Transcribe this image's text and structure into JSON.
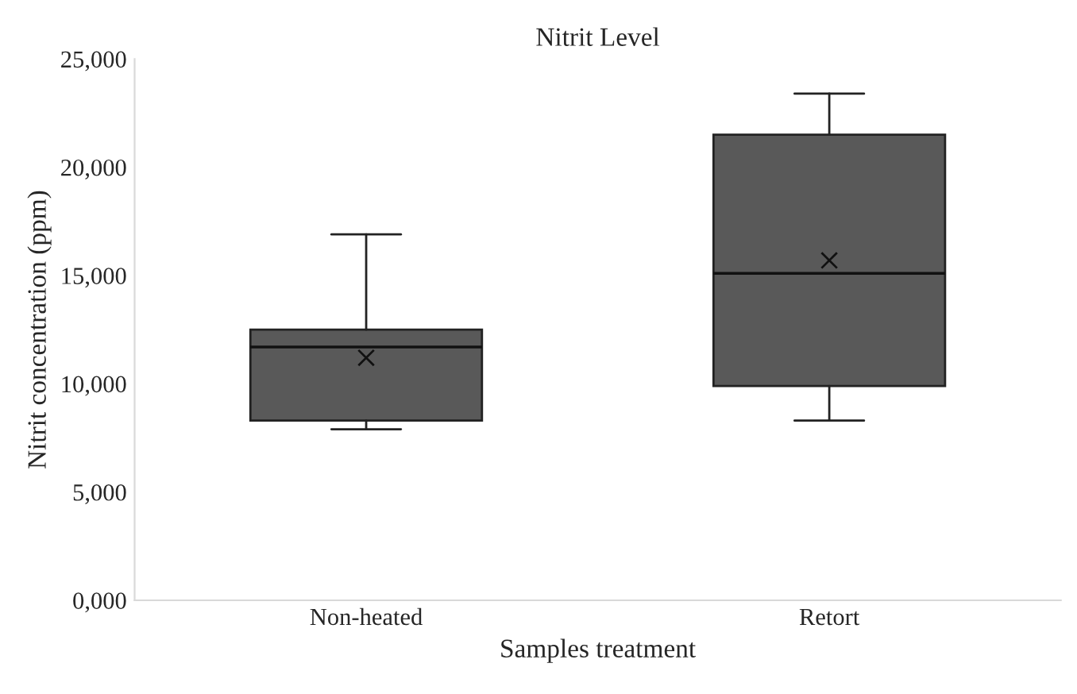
{
  "chart_data": {
    "type": "box",
    "title": "Nitrit Level",
    "xlabel": "Samples treatment",
    "ylabel": "Nitrit concentration (ppm)",
    "categories": [
      "Non-heated",
      "Retort"
    ],
    "boxes": [
      {
        "low": 7900,
        "q1": 8300,
        "median": 11700,
        "q3": 12500,
        "high": 16900,
        "mean": 11200
      },
      {
        "low": 8300,
        "q1": 9900,
        "median": 15100,
        "q3": 21500,
        "high": 23400,
        "mean": 15700
      }
    ],
    "color": "#595959",
    "ylim": [
      0,
      25000
    ],
    "yticks": [
      {
        "value": 0,
        "label": "0,000"
      },
      {
        "value": 5000,
        "label": "5,000"
      },
      {
        "value": 10000,
        "label": "10,000"
      },
      {
        "value": 15000,
        "label": "15,000"
      },
      {
        "value": 20000,
        "label": "20,000"
      },
      {
        "value": 25000,
        "label": "25,000"
      }
    ],
    "grid": false,
    "legend": false
  }
}
